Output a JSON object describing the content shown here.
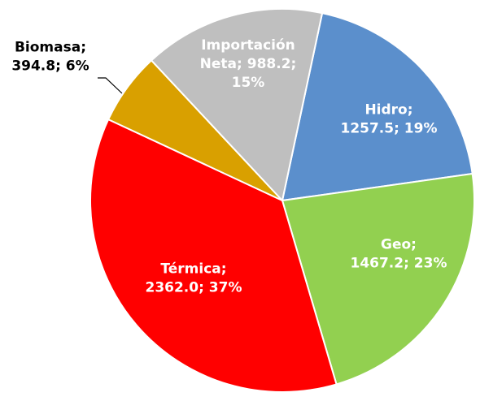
{
  "chart_data": {
    "type": "pie",
    "values": [
      1257.5,
      1467.2,
      2362.0,
      394.8,
      988.2
    ],
    "value_labels": [
      [
        "Hidro;",
        "1257.5; 19%"
      ],
      [
        "Geo;",
        "1467.2; 23%"
      ],
      [
        "Térmica;",
        "2362.0; 37%"
      ],
      [
        "Biomasa;",
        "394.8; 6%"
      ],
      [
        "Importación",
        "Neta; 988.2;",
        "15%"
      ]
    ],
    "colors": [
      "#5b8fcc",
      "#92d050",
      "#ff0000",
      "#d9a000",
      "#bfbfbf"
    ]
  }
}
